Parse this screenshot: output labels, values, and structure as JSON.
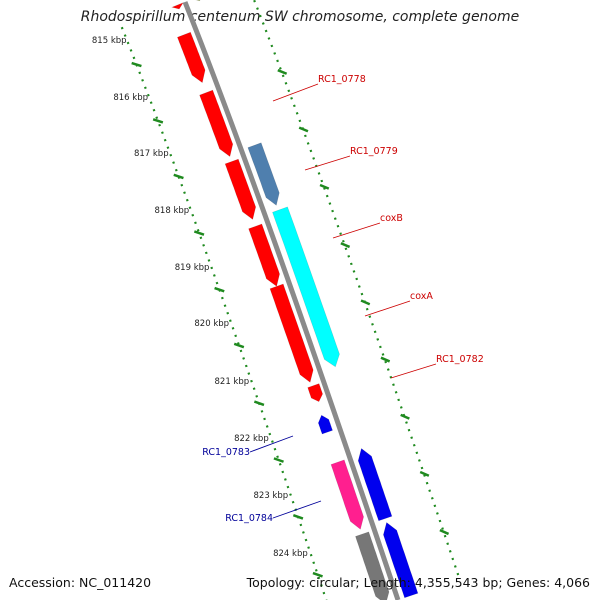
{
  "title": "Rhodospirillum centenum SW chromosome, complete genome",
  "accession": "Accession: NC_011420",
  "topology": "Topology: circular; Length: 4,355,543 bp; Genes: 4,066",
  "scale_labels": [
    "815 kbp",
    "816 kbp",
    "817 kbp",
    "818 kbp",
    "819 kbp",
    "820 kbp",
    "821 kbp",
    "822 kbp",
    "823 kbp",
    "824 kbp"
  ],
  "gene_labels": [
    {
      "text": "RC1_0778",
      "color": "#cc0000"
    },
    {
      "text": "RC1_0779",
      "color": "#cc0000"
    },
    {
      "text": "coxB",
      "color": "#cc0000"
    },
    {
      "text": "coxA",
      "color": "#cc0000"
    },
    {
      "text": "RC1_0782",
      "color": "#cc0000"
    },
    {
      "text": "RC1_0783",
      "color": "#000099"
    },
    {
      "text": "RC1_0784",
      "color": "#000099"
    }
  ],
  "colors": {
    "red": "#ff0000",
    "steelblue": "#4f7fae",
    "cyan": "#00ffff",
    "blue": "#0000ee",
    "magenta": "#ff1f8f",
    "gray": "#777777",
    "olive": "#8fa050",
    "scale_green": "#1f8a1f",
    "backbone": "#8a8a8a"
  }
}
